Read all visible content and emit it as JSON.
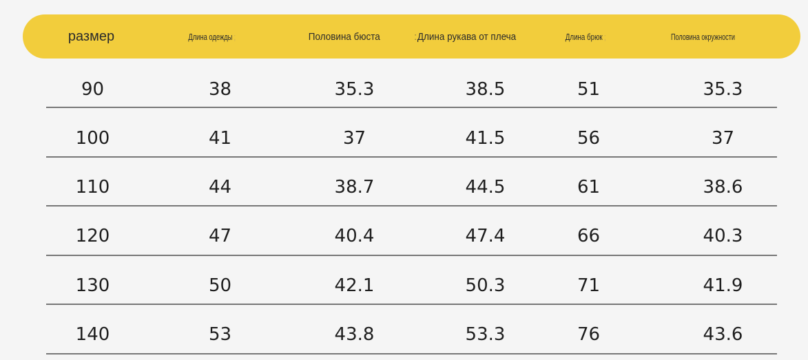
{
  "table": {
    "headers": [
      "размер",
      "Длина одежды",
      "Половина бюста",
      "Длина рукава от плеча",
      "Длина брюк",
      "Половина окружности"
    ],
    "rows": [
      [
        "90",
        "38",
        "35.3",
        "38.5",
        "51",
        "35.3"
      ],
      [
        "100",
        "41",
        "37",
        "41.5",
        "56",
        "37"
      ],
      [
        "110",
        "44",
        "38.7",
        "44.5",
        "61",
        "38.6"
      ],
      [
        "120",
        "47",
        "40.4",
        "47.4",
        "66",
        "40.3"
      ],
      [
        "130",
        "50",
        "42.1",
        "50.3",
        "71",
        "41.9"
      ],
      [
        "140",
        "53",
        "43.8",
        "53.3",
        "76",
        "43.6"
      ]
    ]
  },
  "colors": {
    "header_background": "#f2cd3c",
    "page_background": "#f5f5f5",
    "divider": "#777777"
  }
}
